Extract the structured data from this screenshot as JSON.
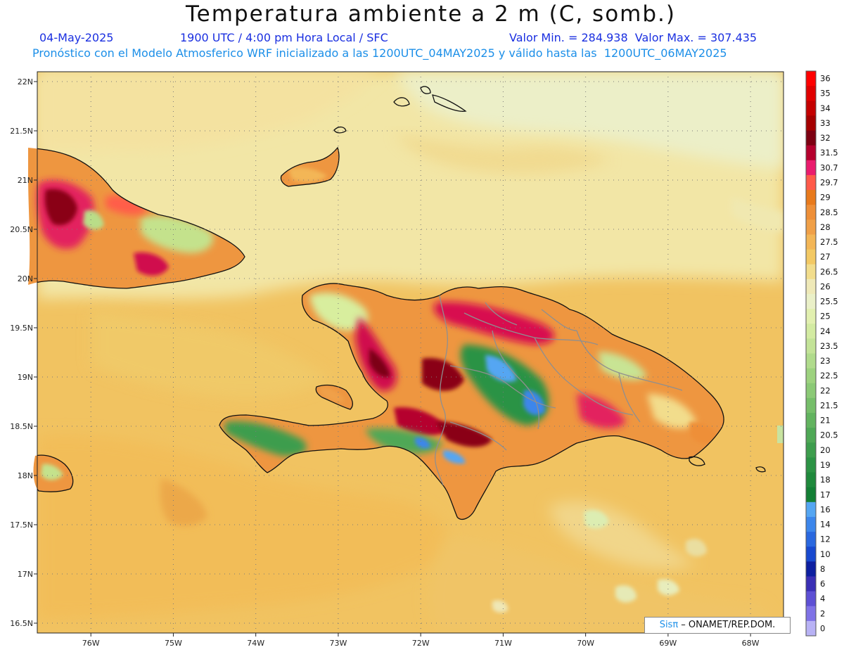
{
  "header": {
    "title": "Temperatura ambiente a 2 m (C, somb.)",
    "date": "04-May-2025",
    "time": "1900 UTC / 4:00 pm Hora Local / SFC",
    "stats": "Valor Min. = 284.938  Valor Max. = 307.435",
    "forecast": "Pronóstico con el Modelo Atmosferico WRF inicializado a las 1200UTC_04MAY2025 y válido hasta las  1200UTC_06MAY2025"
  },
  "map": {
    "lon_range": [
      -76.65,
      -67.6
    ],
    "lat_range": [
      16.4,
      22.1
    ],
    "lat_ticks": [
      "22N",
      "21.5N",
      "21N",
      "20.5N",
      "20N",
      "19.5N",
      "19N",
      "18.5N",
      "18N",
      "17.5N",
      "17N",
      "16.5N"
    ],
    "lon_ticks": [
      "76W",
      "75W",
      "74W",
      "73W",
      "72W",
      "71W",
      "70W",
      "69W",
      "68W"
    ]
  },
  "colorbar": {
    "labels": [
      "36",
      "35",
      "34",
      "33",
      "32",
      "31.5",
      "30.7",
      "29.7",
      "29",
      "28.5",
      "28",
      "27.5",
      "27",
      "26.5",
      "26",
      "25.5",
      "25",
      "24",
      "23.5",
      "23",
      "22.5",
      "22",
      "21.5",
      "21",
      "20.5",
      "20",
      "19",
      "18",
      "17",
      "16",
      "14",
      "12",
      "10",
      "8",
      "6",
      "4",
      "2",
      "0"
    ],
    "colors": [
      "#ff0000",
      "#e00000",
      "#c40000",
      "#a50000",
      "#7d0012",
      "#b5002e",
      "#ea1c6e",
      "#ff5a4a",
      "#e87a1c",
      "#ee8f38",
      "#f0a048",
      "#f3b657",
      "#f3c964",
      "#f2dd8c",
      "#efe9b8",
      "#eaf0c8",
      "#e2f0b0",
      "#d3eba2",
      "#c3e398",
      "#b0db8c",
      "#9dd27f",
      "#8bc976",
      "#76be6a",
      "#62b35f",
      "#4fa856",
      "#3d9d4d",
      "#2c9345",
      "#1f893c",
      "#137f35",
      "#55a6f2",
      "#3c86eb",
      "#2a68df",
      "#1849cf",
      "#0d1fa0",
      "#3a2fb5",
      "#5d50d4",
      "#7f72e6",
      "#b8b2f5"
    ]
  },
  "credit": {
    "sis": "Sisπ",
    "rest": " – ONAMET/REP.DOM."
  }
}
